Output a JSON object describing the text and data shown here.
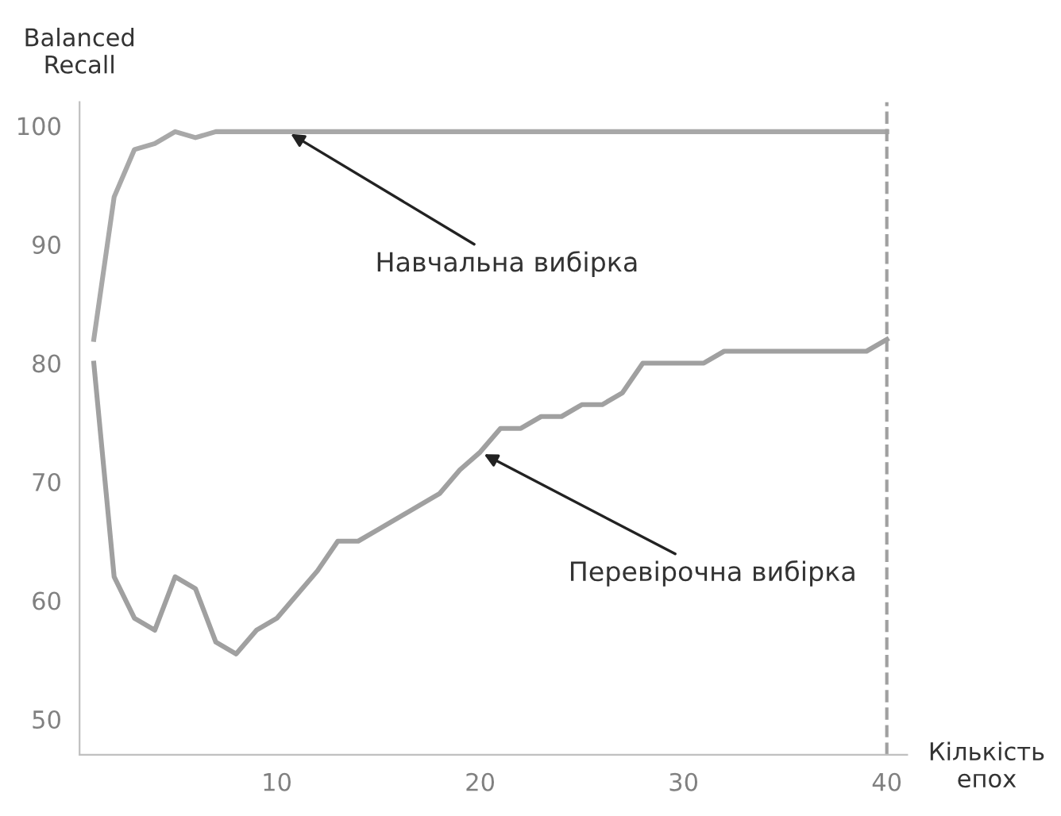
{
  "chart_data": {
    "type": "line",
    "xlabel": "Кількість\nепох",
    "ylabel": "Balanced\nRecall",
    "xlim": [
      0.3,
      41
    ],
    "ylim": [
      47,
      102
    ],
    "xticks": [
      10,
      20,
      30,
      40
    ],
    "yticks": [
      50,
      60,
      70,
      80,
      90,
      100
    ],
    "grid": false,
    "legend": false,
    "line_style": "solid",
    "series": [
      {
        "color": "#a8a8a8",
        "x": [
          1,
          2,
          3,
          4,
          5,
          6,
          7,
          10,
          20,
          30,
          40
        ],
        "values": [
          82,
          94,
          98,
          98.5,
          99.5,
          99,
          99.5,
          99.5,
          99.5,
          99.5,
          99.5
        ]
      },
      {
        "color": "#a0a0a0",
        "x": [
          1,
          2,
          3,
          4,
          5,
          6,
          7,
          8,
          9,
          10,
          11,
          12,
          13,
          14,
          15,
          16,
          17,
          18,
          19,
          20,
          21,
          22,
          23,
          24,
          25,
          26,
          27,
          28,
          29,
          30,
          31,
          32,
          33,
          34,
          35,
          36,
          37,
          38,
          39,
          40
        ],
        "values": [
          80,
          62,
          58.5,
          57.5,
          62,
          61,
          56.5,
          55.5,
          57.5,
          58.5,
          60.5,
          62.5,
          65,
          65,
          66,
          67,
          68,
          69,
          71,
          72.5,
          74.5,
          74.5,
          75.5,
          75.5,
          76.5,
          76.5,
          77.5,
          80,
          80,
          80,
          80,
          81,
          81,
          81,
          81,
          81,
          81,
          81,
          81,
          82
        ]
      }
    ],
    "ref_lines": [
      {
        "axis": "x",
        "value": 40,
        "color": "#a0a0a0",
        "line_style": "dashed"
      }
    ],
    "annotations": [
      {
        "text": "Навчальна вибірка",
        "x": 10.5,
        "y": 99.5
      },
      {
        "text": "Перевірочна вибірка",
        "x": 20,
        "y": 72.5
      }
    ]
  }
}
